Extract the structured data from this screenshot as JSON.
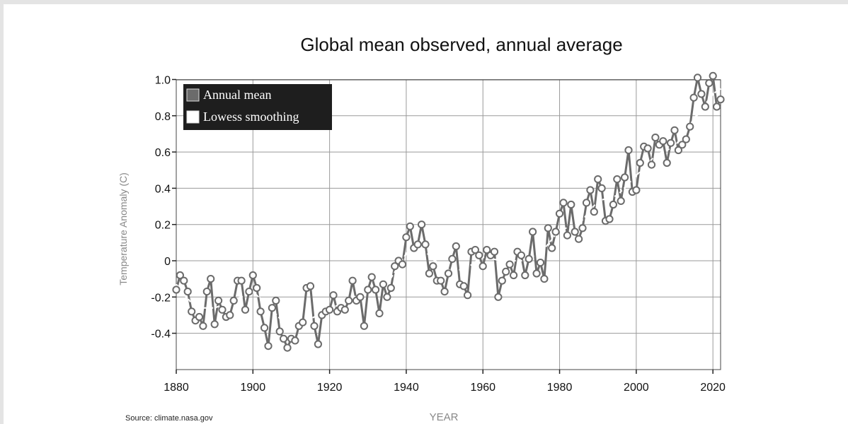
{
  "chart_data": {
    "type": "line",
    "title": "Global mean observed, annual average",
    "xlabel": "YEAR",
    "ylabel": "Temperature Anomaly (C)",
    "xlim": [
      1880,
      2022
    ],
    "ylim": [
      -0.55,
      1.05
    ],
    "x_ticks": [
      1880,
      1900,
      1920,
      1940,
      1960,
      1980,
      2000,
      2020
    ],
    "y_ticks": [
      1.0,
      0.8,
      0.6,
      0.4,
      0.2,
      0,
      -0.2,
      -0.4
    ],
    "y_tick_labels": [
      "1.0",
      "0.8",
      "0.6",
      "0.4",
      "0.2",
      "0",
      "-0.2",
      "-0.4"
    ],
    "grid": true,
    "legend_position": "top-left",
    "legend": [
      "Annual mean",
      "Lowess smoothing"
    ],
    "colors": {
      "annual": "#6b6b6b",
      "lowess": "#ffffff",
      "legend_bg": "#1e1e1e",
      "grid": "#9a9a9a"
    },
    "series": [
      {
        "name": "Annual mean",
        "x": [
          1880,
          1881,
          1882,
          1883,
          1884,
          1885,
          1886,
          1887,
          1888,
          1889,
          1890,
          1891,
          1892,
          1893,
          1894,
          1895,
          1896,
          1897,
          1898,
          1899,
          1900,
          1901,
          1902,
          1903,
          1904,
          1905,
          1906,
          1907,
          1908,
          1909,
          1910,
          1911,
          1912,
          1913,
          1914,
          1915,
          1916,
          1917,
          1918,
          1919,
          1920,
          1921,
          1922,
          1923,
          1924,
          1925,
          1926,
          1927,
          1928,
          1929,
          1930,
          1931,
          1932,
          1933,
          1934,
          1935,
          1936,
          1937,
          1938,
          1939,
          1940,
          1941,
          1942,
          1943,
          1944,
          1945,
          1946,
          1947,
          1948,
          1949,
          1950,
          1951,
          1952,
          1953,
          1954,
          1955,
          1956,
          1957,
          1958,
          1959,
          1960,
          1961,
          1962,
          1963,
          1964,
          1965,
          1966,
          1967,
          1968,
          1969,
          1970,
          1971,
          1972,
          1973,
          1974,
          1975,
          1976,
          1977,
          1978,
          1979,
          1980,
          1981,
          1982,
          1983,
          1984,
          1985,
          1986,
          1987,
          1988,
          1989,
          1990,
          1991,
          1992,
          1993,
          1994,
          1995,
          1996,
          1997,
          1998,
          1999,
          2000,
          2001,
          2002,
          2003,
          2004,
          2005,
          2006,
          2007,
          2008,
          2009,
          2010,
          2011,
          2012,
          2013,
          2014,
          2015,
          2016,
          2017,
          2018,
          2019,
          2020,
          2021,
          2022
        ],
        "values": [
          -0.16,
          -0.08,
          -0.11,
          -0.17,
          -0.28,
          -0.33,
          -0.31,
          -0.36,
          -0.17,
          -0.1,
          -0.35,
          -0.22,
          -0.27,
          -0.31,
          -0.3,
          -0.22,
          -0.11,
          -0.11,
          -0.27,
          -0.17,
          -0.08,
          -0.15,
          -0.28,
          -0.37,
          -0.47,
          -0.26,
          -0.22,
          -0.39,
          -0.43,
          -0.48,
          -0.43,
          -0.44,
          -0.36,
          -0.34,
          -0.15,
          -0.14,
          -0.36,
          -0.46,
          -0.3,
          -0.28,
          -0.27,
          -0.19,
          -0.28,
          -0.26,
          -0.27,
          -0.22,
          -0.11,
          -0.22,
          -0.2,
          -0.36,
          -0.16,
          -0.09,
          -0.16,
          -0.29,
          -0.13,
          -0.2,
          -0.15,
          -0.03,
          0.0,
          -0.02,
          0.13,
          0.19,
          0.07,
          0.09,
          0.2,
          0.09,
          -0.07,
          -0.03,
          -0.11,
          -0.11,
          -0.17,
          -0.07,
          0.01,
          0.08,
          -0.13,
          -0.14,
          -0.19,
          0.05,
          0.06,
          0.03,
          -0.03,
          0.06,
          0.03,
          0.05,
          -0.2,
          -0.11,
          -0.06,
          -0.02,
          -0.08,
          0.05,
          0.03,
          -0.08,
          0.01,
          0.16,
          -0.07,
          -0.01,
          -0.1,
          0.18,
          0.07,
          0.16,
          0.26,
          0.32,
          0.14,
          0.31,
          0.16,
          0.12,
          0.18,
          0.32,
          0.39,
          0.27,
          0.45,
          0.4,
          0.22,
          0.23,
          0.31,
          0.45,
          0.33,
          0.46,
          0.61,
          0.38,
          0.39,
          0.54,
          0.63,
          0.62,
          0.53,
          0.68,
          0.64,
          0.66,
          0.54,
          0.65,
          0.72,
          0.61,
          0.64,
          0.67,
          0.74,
          0.9,
          1.01,
          0.92,
          0.85,
          0.98,
          1.02,
          0.85,
          0.89
        ]
      },
      {
        "name": "Lowess smoothing",
        "x": [
          1880,
          1885,
          1890,
          1895,
          1900,
          1905,
          1910,
          1915,
          1920,
          1925,
          1930,
          1935,
          1940,
          1945,
          1950,
          1955,
          1960,
          1965,
          1970,
          1975,
          1980,
          1985,
          1990,
          1995,
          2000,
          2005,
          2010,
          2015,
          2020,
          2022
        ],
        "values": [
          -0.13,
          -0.26,
          -0.26,
          -0.22,
          -0.17,
          -0.27,
          -0.39,
          -0.32,
          -0.27,
          -0.21,
          -0.17,
          -0.13,
          0.04,
          0.05,
          -0.05,
          -0.05,
          0.02,
          0.0,
          0.0,
          0.04,
          0.17,
          0.2,
          0.33,
          0.36,
          0.47,
          0.58,
          0.63,
          0.78,
          0.92,
          0.95
        ]
      }
    ],
    "source": "Source: climate.nasa.gov"
  }
}
